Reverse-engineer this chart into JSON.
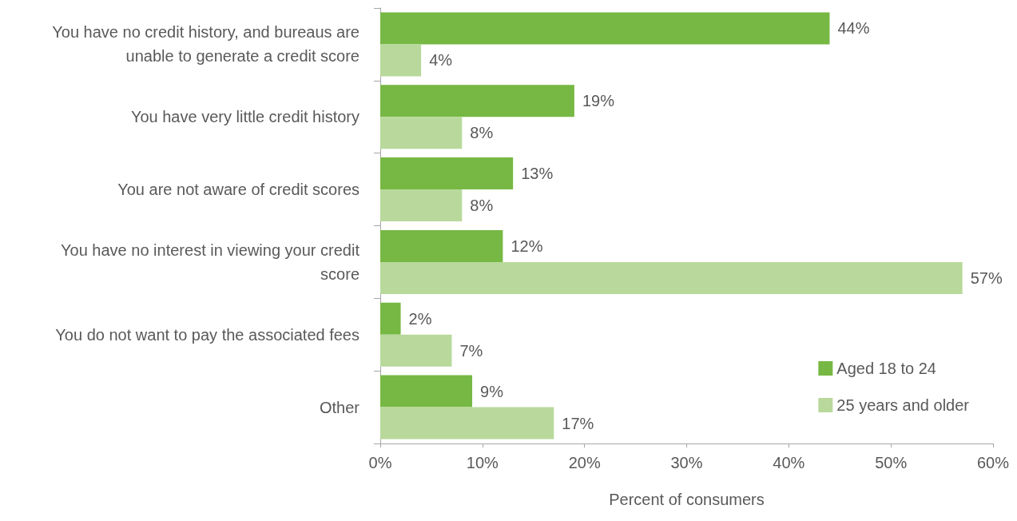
{
  "chart_data": {
    "type": "bar",
    "orientation": "horizontal",
    "xlabel": "Percent of consumers",
    "categories": [
      "You have no credit history, and bureaus are unable to generate a credit score",
      "You have very little credit history",
      "You are not aware of credit scores",
      "You have no interest in viewing your credit score",
      "You do not want to pay the associated fees",
      "Other"
    ],
    "series": [
      {
        "name": "Aged 18 to 24",
        "color": "#76b843",
        "values": [
          44,
          19,
          13,
          12,
          2,
          9
        ],
        "value_labels": [
          "44%",
          "19%",
          "13%",
          "12%",
          "2%",
          "9%"
        ]
      },
      {
        "name": "25 years and older",
        "color": "#b8d99b",
        "values": [
          4,
          8,
          8,
          57,
          7,
          17
        ],
        "value_labels": [
          "4%",
          "8%",
          "8%",
          "57%",
          "7%",
          "17%"
        ]
      }
    ],
    "xlim": [
      0,
      60
    ],
    "xticks": [
      {
        "value": 0,
        "label": "0%"
      },
      {
        "value": 10,
        "label": "10%"
      },
      {
        "value": 20,
        "label": "20%"
      },
      {
        "value": 30,
        "label": "30%"
      },
      {
        "value": 40,
        "label": "40%"
      },
      {
        "value": 50,
        "label": "50%"
      },
      {
        "value": 60,
        "label": "60%"
      }
    ],
    "grid": false,
    "legend": "bottom right"
  }
}
